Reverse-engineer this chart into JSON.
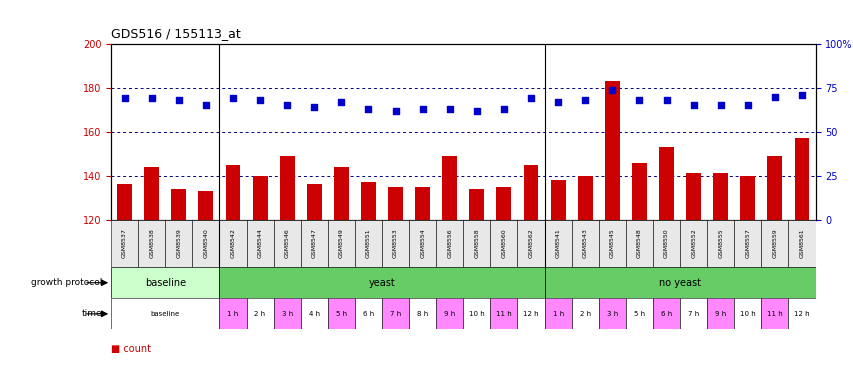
{
  "title": "GDS516 / 155113_at",
  "samples": [
    "GSM8537",
    "GSM8538",
    "GSM8539",
    "GSM8540",
    "GSM8542",
    "GSM8544",
    "GSM8546",
    "GSM8547",
    "GSM8549",
    "GSM8551",
    "GSM8553",
    "GSM8554",
    "GSM8556",
    "GSM8558",
    "GSM8560",
    "GSM8562",
    "GSM8541",
    "GSM8543",
    "GSM8545",
    "GSM8548",
    "GSM8550",
    "GSM8552",
    "GSM8555",
    "GSM8557",
    "GSM8559",
    "GSM8561"
  ],
  "counts": [
    136,
    144,
    134,
    133,
    145,
    140,
    149,
    136,
    144,
    137,
    135,
    135,
    149,
    134,
    135,
    145,
    138,
    140,
    183,
    146,
    153,
    141,
    141,
    140,
    149,
    157
  ],
  "percentile_ranks": [
    69,
    69,
    68,
    65,
    69,
    68,
    65,
    64,
    67,
    63,
    62,
    63,
    63,
    62,
    63,
    69,
    67,
    68,
    74,
    68,
    68,
    65,
    65,
    65,
    70,
    71
  ],
  "ylim_left": [
    120,
    200
  ],
  "ylim_right": [
    0,
    100
  ],
  "yticks_left": [
    120,
    140,
    160,
    180,
    200
  ],
  "yticks_right": [
    0,
    25,
    50,
    75,
    100
  ],
  "bar_color": "#cc0000",
  "dot_color": "#0000cc",
  "bar_baseline": 120,
  "left_ylabel_color": "#cc0000",
  "right_ylabel_color": "#0000cc",
  "grid_color": "#000080",
  "bg_color": "#ffffff",
  "axis_bg_color": "#ffffff",
  "proto_groups": [
    {
      "label": "baseline",
      "start": 0,
      "end": 4,
      "color": "#ccffcc"
    },
    {
      "label": "yeast",
      "start": 4,
      "end": 16,
      "color": "#66cc66"
    },
    {
      "label": "no yeast",
      "start": 16,
      "end": 26,
      "color": "#66cc66"
    }
  ],
  "time_cells": [
    {
      "label": "baseline",
      "start": 0,
      "end": 4,
      "color": "#ffffff"
    },
    {
      "label": "1 h",
      "start": 4,
      "end": 5,
      "color": "#ff88ff"
    },
    {
      "label": "2 h",
      "start": 5,
      "end": 6,
      "color": "#ffffff"
    },
    {
      "label": "3 h",
      "start": 6,
      "end": 7,
      "color": "#ff88ff"
    },
    {
      "label": "4 h",
      "start": 7,
      "end": 8,
      "color": "#ffffff"
    },
    {
      "label": "5 h",
      "start": 8,
      "end": 9,
      "color": "#ff88ff"
    },
    {
      "label": "6 h",
      "start": 9,
      "end": 10,
      "color": "#ffffff"
    },
    {
      "label": "7 h",
      "start": 10,
      "end": 11,
      "color": "#ff88ff"
    },
    {
      "label": "8 h",
      "start": 11,
      "end": 12,
      "color": "#ffffff"
    },
    {
      "label": "9 h",
      "start": 12,
      "end": 13,
      "color": "#ff88ff"
    },
    {
      "label": "10 h",
      "start": 13,
      "end": 14,
      "color": "#ffffff"
    },
    {
      "label": "11 h",
      "start": 14,
      "end": 15,
      "color": "#ff88ff"
    },
    {
      "label": "12 h",
      "start": 15,
      "end": 16,
      "color": "#ffffff"
    },
    {
      "label": "1 h",
      "start": 16,
      "end": 17,
      "color": "#ff88ff"
    },
    {
      "label": "2 h",
      "start": 17,
      "end": 18,
      "color": "#ffffff"
    },
    {
      "label": "3 h",
      "start": 18,
      "end": 19,
      "color": "#ff88ff"
    },
    {
      "label": "5 h",
      "start": 19,
      "end": 20,
      "color": "#ffffff"
    },
    {
      "label": "6 h",
      "start": 20,
      "end": 21,
      "color": "#ff88ff"
    },
    {
      "label": "7 h",
      "start": 21,
      "end": 22,
      "color": "#ffffff"
    },
    {
      "label": "9 h",
      "start": 22,
      "end": 23,
      "color": "#ff88ff"
    },
    {
      "label": "10 h",
      "start": 23,
      "end": 24,
      "color": "#ffffff"
    },
    {
      "label": "11 h",
      "start": 24,
      "end": 25,
      "color": "#ff88ff"
    },
    {
      "label": "12 h",
      "start": 25,
      "end": 26,
      "color": "#ffffff"
    }
  ]
}
